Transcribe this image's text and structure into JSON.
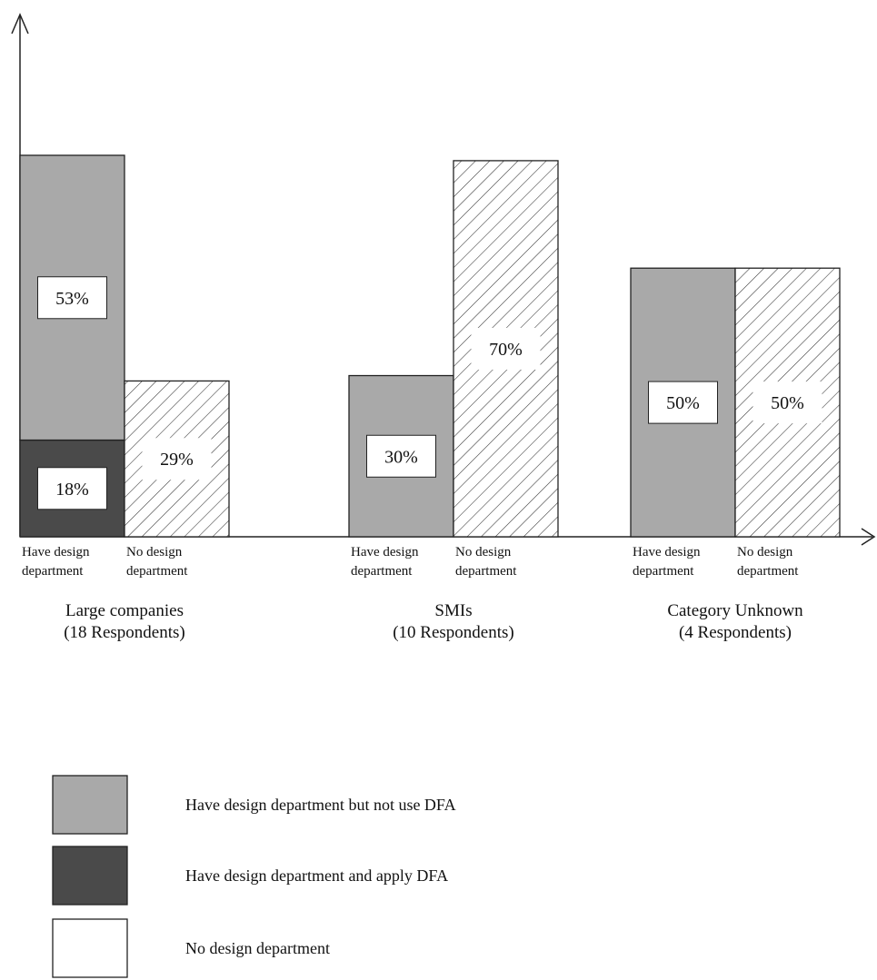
{
  "chart_data": {
    "type": "bar",
    "stacked": true,
    "title": "",
    "xlabel": "",
    "ylabel": "",
    "ylim": [
      0,
      100
    ],
    "grid": false,
    "legend_position": "bottom-left",
    "groups": [
      {
        "label": "Large companies",
        "sublabel": "(18 Respondents)",
        "bars": [
          {
            "label": "Have design department",
            "segments": [
              {
                "series": "apply",
                "value": 18,
                "label": "18%"
              },
              {
                "series": "not_use",
                "value": 53,
                "label": "53%"
              }
            ]
          },
          {
            "label": "No design department",
            "segments": [
              {
                "series": "none",
                "value": 29,
                "label": "29%"
              }
            ]
          }
        ]
      },
      {
        "label": "SMIs",
        "sublabel": "(10 Respondents)",
        "bars": [
          {
            "label": "Have design department",
            "segments": [
              {
                "series": "not_use",
                "value": 30,
                "label": "30%"
              }
            ]
          },
          {
            "label": "No design department",
            "segments": [
              {
                "series": "none",
                "value": 70,
                "label": "70%"
              }
            ]
          }
        ]
      },
      {
        "label": "Category Unknown",
        "sublabel": "(4 Respondents)",
        "bars": [
          {
            "label": "Have design department",
            "segments": [
              {
                "series": "not_use",
                "value": 50,
                "label": "50%"
              }
            ]
          },
          {
            "label": "No design department",
            "segments": [
              {
                "series": "none",
                "value": 50,
                "label": "50%"
              }
            ]
          }
        ]
      }
    ],
    "legend": [
      {
        "series": "not_use",
        "label": "Have design department but not use DFA"
      },
      {
        "series": "apply",
        "label": "Have design department and apply DFA"
      },
      {
        "series": "none",
        "label": "No design department"
      }
    ],
    "colors": {
      "not_use": "#a9a9a9",
      "apply": "#4a4a4a",
      "none": "#ffffff",
      "hatch": "#333333",
      "axis": "#222222"
    }
  }
}
